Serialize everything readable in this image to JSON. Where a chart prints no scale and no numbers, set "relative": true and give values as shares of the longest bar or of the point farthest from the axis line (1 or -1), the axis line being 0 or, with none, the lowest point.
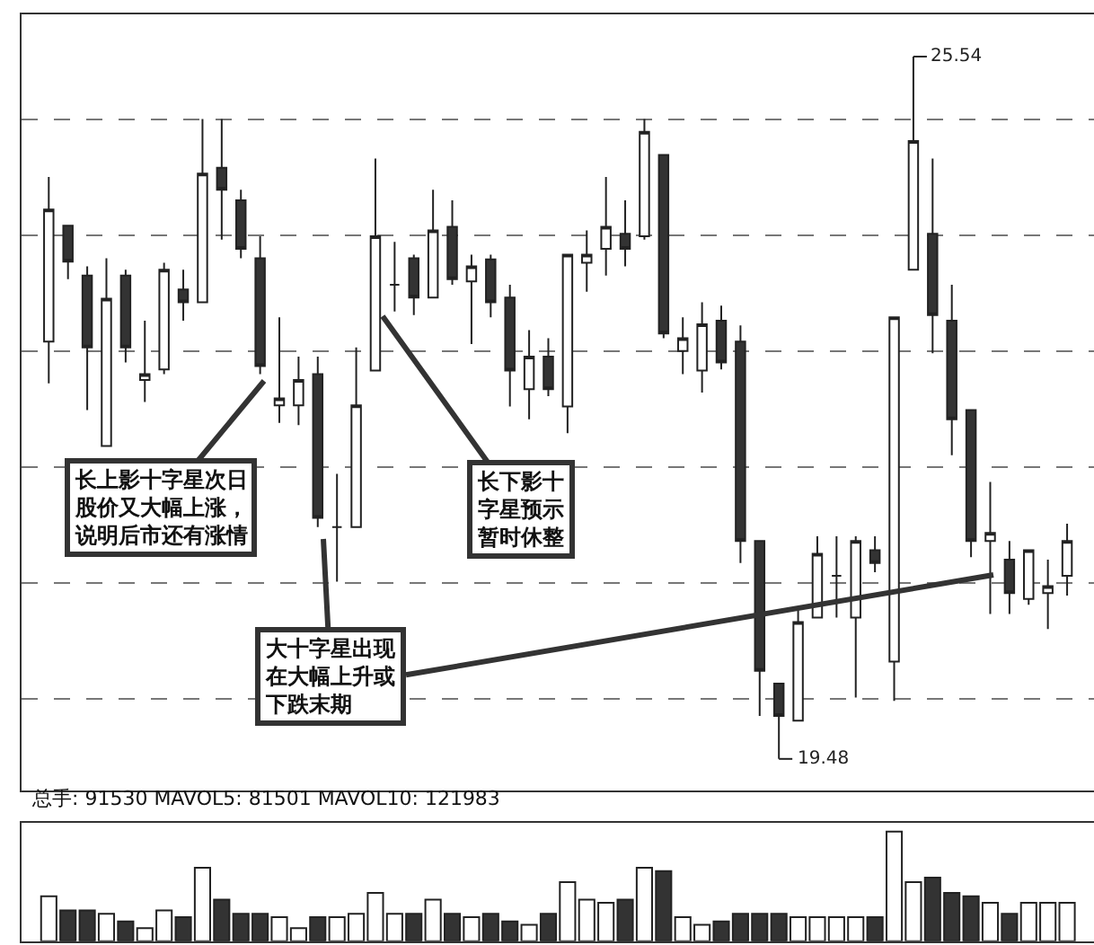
{
  "chart_data": [
    {
      "type": "candlestick",
      "grid": "y",
      "tick_labels": false,
      "categories": [
        null,
        null,
        null,
        null,
        null,
        null,
        null,
        null,
        null,
        null,
        null,
        null,
        null,
        null,
        null,
        null,
        null,
        null,
        null,
        null,
        null,
        null,
        null,
        null,
        null,
        null,
        null,
        null,
        null,
        null,
        null,
        null,
        null,
        null,
        null,
        null,
        null,
        null,
        null,
        null,
        null,
        null,
        null,
        null,
        null,
        null,
        null,
        null,
        null,
        null,
        null,
        null,
        null,
        null
      ],
      "ohlc": [
        [
          23.08,
          24.5,
          22.72,
          24.22
        ],
        [
          24.08,
          24.08,
          23.62,
          23.77
        ],
        [
          23.65,
          23.73,
          22.49,
          23.03
        ],
        [
          22.18,
          23.8,
          22.18,
          23.45
        ],
        [
          23.65,
          23.7,
          22.9,
          23.03
        ],
        [
          22.75,
          23.26,
          22.56,
          22.8
        ],
        [
          22.84,
          23.76,
          22.8,
          23.7
        ],
        [
          23.53,
          23.7,
          23.26,
          23.42
        ],
        [
          23.42,
          25.0,
          23.42,
          24.53
        ],
        [
          24.58,
          25.0,
          23.96,
          24.39
        ],
        [
          24.3,
          24.39,
          23.8,
          23.88
        ],
        [
          23.8,
          23.99,
          22.8,
          22.87
        ],
        [
          22.53,
          23.29,
          22.38,
          22.59
        ],
        [
          22.53,
          22.95,
          22.36,
          22.75
        ],
        [
          22.8,
          22.95,
          21.48,
          21.56
        ],
        [
          21.48,
          21.94,
          21.01,
          21.48
        ],
        [
          21.48,
          23.03,
          21.48,
          22.53
        ],
        [
          22.83,
          24.66,
          22.83,
          23.99
        ],
        [
          23.57,
          23.94,
          23.34,
          23.57
        ],
        [
          23.8,
          23.83,
          23.31,
          23.46
        ],
        [
          23.46,
          24.39,
          23.46,
          24.04
        ],
        [
          24.07,
          24.3,
          23.57,
          23.62
        ],
        [
          23.6,
          23.83,
          23.06,
          23.73
        ],
        [
          23.79,
          23.83,
          23.29,
          23.42
        ],
        [
          23.46,
          23.57,
          22.52,
          22.83
        ],
        [
          22.67,
          23.18,
          22.41,
          22.95
        ],
        [
          22.95,
          23.11,
          22.61,
          22.67
        ],
        [
          22.52,
          23.83,
          22.29,
          23.83
        ],
        [
          23.76,
          24.04,
          23.51,
          23.83
        ],
        [
          23.88,
          24.5,
          23.65,
          24.07
        ],
        [
          24.01,
          24.3,
          23.73,
          23.88
        ],
        [
          23.99,
          25.0,
          23.96,
          24.89
        ],
        [
          24.69,
          24.69,
          23.11,
          23.15
        ],
        [
          23.0,
          23.29,
          22.8,
          23.11
        ],
        [
          22.83,
          23.42,
          22.64,
          23.23
        ],
        [
          23.26,
          23.39,
          22.84,
          22.9
        ],
        [
          23.08,
          23.22,
          21.17,
          21.36
        ],
        [
          21.36,
          21.36,
          19.85,
          20.24
        ],
        [
          20.13,
          20.13,
          19.48,
          19.85
        ],
        [
          19.81,
          20.78,
          19.81,
          20.66
        ],
        [
          20.7,
          21.4,
          20.7,
          21.25
        ],
        [
          21.06,
          21.4,
          20.7,
          21.06
        ],
        [
          20.7,
          21.4,
          20.01,
          21.36
        ],
        [
          21.28,
          21.4,
          21.09,
          21.17
        ],
        [
          20.32,
          23.29,
          19.98,
          23.29
        ],
        [
          23.7,
          25.54,
          23.7,
          24.81
        ],
        [
          24.01,
          24.66,
          22.98,
          23.31
        ],
        [
          23.26,
          23.57,
          22.1,
          22.41
        ],
        [
          22.49,
          22.49,
          21.22,
          21.36
        ],
        [
          21.36,
          21.87,
          20.73,
          21.43
        ],
        [
          21.2,
          21.36,
          20.73,
          20.91
        ],
        [
          20.86,
          21.28,
          20.81,
          21.28
        ],
        [
          20.91,
          21.2,
          20.6,
          20.97
        ],
        [
          21.06,
          21.51,
          20.89,
          21.36
        ]
      ],
      "annotations": [
        "25.54",
        "19.48",
        "长上影十字星次日股价又大幅上涨，说明后市还有涨情",
        "长下影十字星预示暂时休整",
        "大十字星出现在大幅上升或下跌末期"
      ]
    },
    {
      "type": "bar",
      "relative": true,
      "title": "总手: 91530 MAVOL5: 81501 MAVOL10: 121983",
      "categories": [
        null,
        null,
        null,
        null,
        null,
        null,
        null,
        null,
        null,
        null,
        null,
        null,
        null,
        null,
        null,
        null,
        null,
        null,
        null,
        null,
        null,
        null,
        null,
        null,
        null,
        null,
        null,
        null,
        null,
        null,
        null,
        null,
        null,
        null,
        null,
        null,
        null,
        null,
        null,
        null,
        null,
        null,
        null,
        null,
        null,
        null,
        null,
        null,
        null,
        null,
        null,
        null,
        null,
        null
      ],
      "values": [
        0.41,
        0.28,
        0.28,
        0.25,
        0.18,
        0.12,
        0.28,
        0.22,
        0.67,
        0.38,
        0.25,
        0.25,
        0.22,
        0.12,
        0.22,
        0.22,
        0.25,
        0.44,
        0.25,
        0.25,
        0.38,
        0.25,
        0.22,
        0.25,
        0.18,
        0.15,
        0.25,
        0.54,
        0.38,
        0.35,
        0.38,
        0.67,
        0.64,
        0.22,
        0.15,
        0.18,
        0.25,
        0.25,
        0.25,
        0.22,
        0.22,
        0.22,
        0.22,
        0.22,
        1,
        0.54,
        0.58,
        0.44,
        0.41,
        0.35,
        0.25,
        0.35,
        0.35,
        0.35
      ],
      "colors": [
        "#ffffff",
        "#333333",
        "#333333",
        "#ffffff",
        "#333333",
        "#ffffff",
        "#ffffff",
        "#333333",
        "#ffffff",
        "#333333",
        "#333333",
        "#333333",
        "#ffffff",
        "#ffffff",
        "#333333",
        "#ffffff",
        "#ffffff",
        "#ffffff",
        "#ffffff",
        "#333333",
        "#ffffff",
        "#333333",
        "#ffffff",
        "#333333",
        "#333333",
        "#ffffff",
        "#333333",
        "#ffffff",
        "#ffffff",
        "#ffffff",
        "#333333",
        "#ffffff",
        "#333333",
        "#ffffff",
        "#ffffff",
        "#333333",
        "#333333",
        "#333333",
        "#333333",
        "#ffffff",
        "#ffffff",
        "#ffffff",
        "#ffffff",
        "#333333",
        "#ffffff",
        "#ffffff",
        "#333333",
        "#333333",
        "#333333",
        "#ffffff",
        "#333333",
        "#ffffff",
        "#ffffff",
        "#ffffff"
      ]
    }
  ]
}
